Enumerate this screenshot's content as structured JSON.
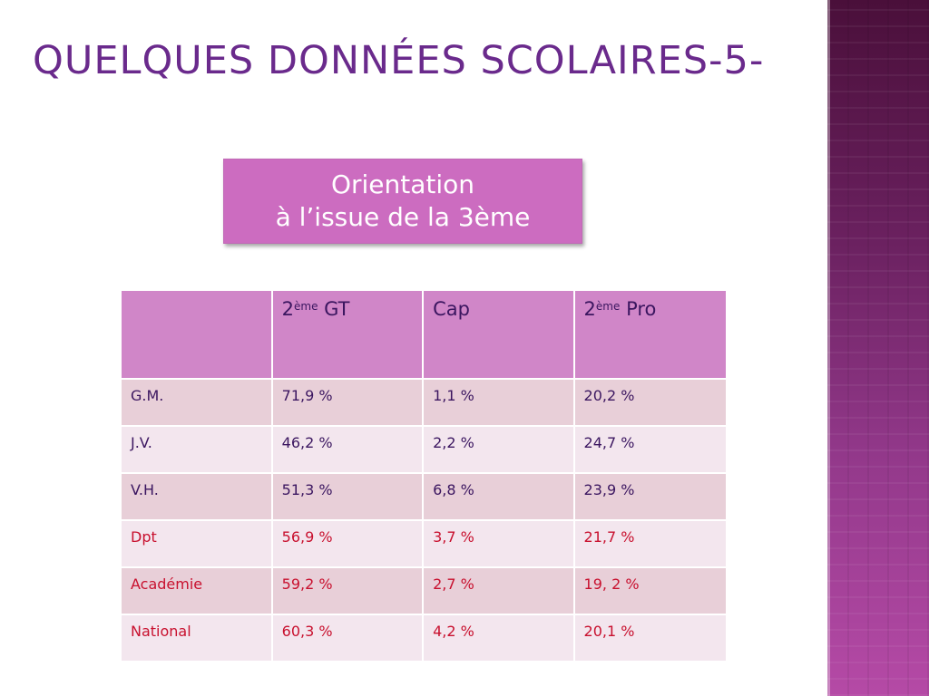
{
  "slide": {
    "title": "QUELQUES DONNÉES SCOLAIRES-5-",
    "subtitle_line1": "Orientation",
    "subtitle_line2": "à l’issue de la 3ème"
  },
  "table": {
    "headers": [
      {
        "base": "",
        "sup": "",
        "rest": ""
      },
      {
        "base": "2",
        "sup": "ème",
        "rest": " GT"
      },
      {
        "base": "Cap",
        "sup": "",
        "rest": ""
      },
      {
        "base": "2",
        "sup": "ème",
        "rest": " Pro"
      }
    ],
    "rows": [
      {
        "label": "G.M.",
        "values": [
          "71,9 %",
          "1,1 %",
          "20,2 %"
        ]
      },
      {
        "label": "J.V.",
        "values": [
          "46,2 %",
          "2,2 %",
          "24,7 %"
        ]
      },
      {
        "label": "V.H.",
        "values": [
          "51,3 %",
          "6,8 %",
          "23,9 %"
        ]
      },
      {
        "label": "Dpt",
        "values": [
          "56,9 %",
          "3,7 %",
          "21,7 %"
        ]
      },
      {
        "label": "Académie",
        "values": [
          "59,2 %",
          " 2,7 %",
          "19, 2 %"
        ]
      },
      {
        "label": "National",
        "values": [
          "60,3 %",
          "4,2 %",
          "20,1 %"
        ]
      }
    ]
  },
  "colors": {
    "title": "#6a2a8c",
    "box": "#cc6cc0",
    "header_row": "#d086c8",
    "row_odd": "#e8cfd8",
    "row_even": "#f3e6ee",
    "highlight_text": "#c8102e"
  }
}
